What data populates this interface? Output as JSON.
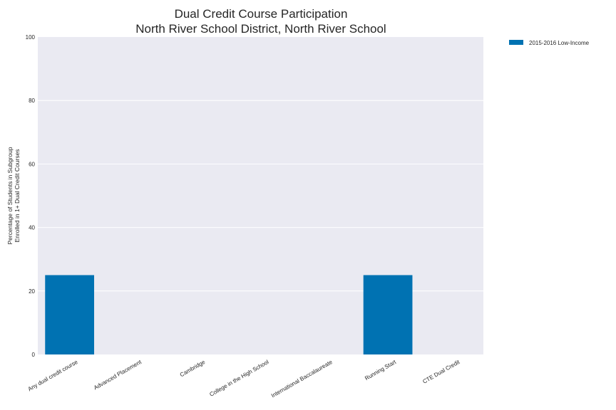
{
  "chart_data": {
    "type": "bar",
    "title": [
      "Dual Credit Course Participation",
      "North River School District, North River School"
    ],
    "xlabel": "",
    "ylabel": [
      "Percentage of Students in Subgroup",
      "Enrolled in 1+ Dual Credit Courses"
    ],
    "ylim": [
      0,
      100
    ],
    "yticks": [
      "0",
      "20",
      "40",
      "60",
      "80",
      "100"
    ],
    "categories": [
      "Any dual credit course",
      "Advanced Placement",
      "Cambridge",
      "College in the High School",
      "International Baccalaureate",
      "Running Start",
      "CTE Dual Credit"
    ],
    "series": [
      {
        "name": "2015-2016 Low-Income",
        "color": "#0072b2",
        "values": [
          25,
          0,
          0,
          0,
          0,
          25,
          0
        ]
      }
    ],
    "grid": true,
    "legend_position": "outside-top-right",
    "plot_background": "#eaeaf2"
  }
}
